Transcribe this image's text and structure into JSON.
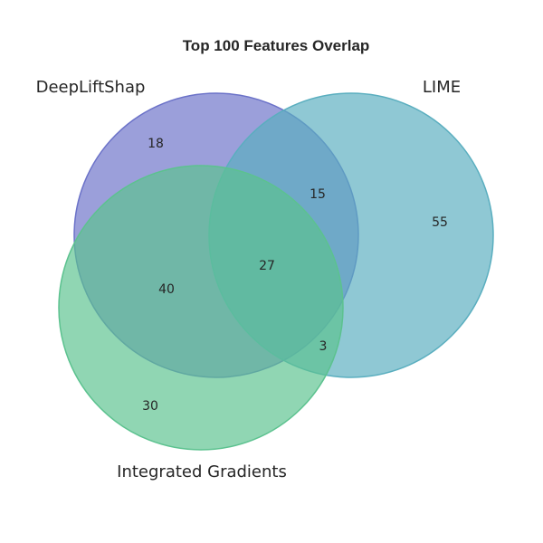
{
  "chart_data": {
    "type": "venn",
    "title": "Top 100 Features Overlap",
    "sets": [
      {
        "name": "DeepLiftShap",
        "color": "#6b72c8"
      },
      {
        "name": "LIME",
        "color": "#5aaebf"
      },
      {
        "name": "Integrated Gradients",
        "color": "#5cc28f"
      }
    ],
    "regions": [
      {
        "sets": [
          "DeepLiftShap"
        ],
        "value": 18
      },
      {
        "sets": [
          "LIME"
        ],
        "value": 55
      },
      {
        "sets": [
          "Integrated Gradients"
        ],
        "value": 30
      },
      {
        "sets": [
          "DeepLiftShap",
          "LIME"
        ],
        "value": 15
      },
      {
        "sets": [
          "DeepLiftShap",
          "Integrated Gradients"
        ],
        "value": 40
      },
      {
        "sets": [
          "LIME",
          "Integrated Gradients"
        ],
        "value": 3
      },
      {
        "sets": [
          "DeepLiftShap",
          "LIME",
          "Integrated Gradients"
        ],
        "value": 27
      }
    ]
  }
}
